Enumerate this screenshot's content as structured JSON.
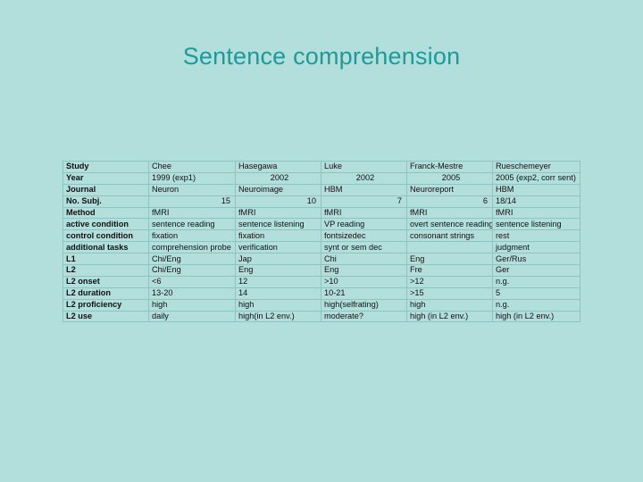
{
  "slide": {
    "title": "Sentence comprehension"
  },
  "table": {
    "rows": [
      {
        "label": "Study",
        "cells": [
          "Chee",
          "Hasegawa",
          "Luke",
          "Franck-Mestre",
          "Rueschemeyer"
        ]
      },
      {
        "label": "Year",
        "cells": [
          "1999 (exp1)",
          "2002",
          "2002",
          "2005",
          "2005 (exp2, corr sent)"
        ]
      },
      {
        "label": "Journal",
        "cells": [
          "Neuron",
          "Neuroimage",
          "HBM",
          "Neuroreport",
          "HBM"
        ]
      },
      {
        "label": "No. Subj.",
        "cells": [
          "15",
          "10",
          "7",
          "6",
          "18/14"
        ]
      },
      {
        "label": "Method",
        "cells": [
          "fMRI",
          "fMRI",
          "fMRI",
          "fMRI",
          "fMRI"
        ]
      },
      {
        "label": "active condition",
        "cells": [
          "sentence reading",
          "sentence listening",
          "VP reading",
          "overt sentence reading",
          "sentence listening"
        ]
      },
      {
        "label": "control condition",
        "cells": [
          "fixation",
          "fixation",
          "fontsizedec",
          "consonant strings",
          "rest"
        ]
      },
      {
        "label": "additional tasks",
        "cells": [
          "comprehension probe",
          "verification",
          "synt or sem dec",
          "",
          "judgment"
        ]
      },
      {
        "label": "L1",
        "cells": [
          "Chi/Eng",
          "Jap",
          "Chi",
          "Eng",
          "Ger/Rus"
        ]
      },
      {
        "label": "L2",
        "cells": [
          "Chi/Eng",
          "Eng",
          "Eng",
          "Fre",
          "Ger"
        ]
      },
      {
        "label": "L2 onset",
        "cells": [
          "<6",
          "12",
          ">10",
          ">12",
          "n.g."
        ]
      },
      {
        "label": "L2 duration",
        "cells": [
          "13-20",
          "14",
          "10-21",
          ">15",
          "5"
        ]
      },
      {
        "label": "L2 proficiency",
        "cells": [
          "high",
          "high",
          "high(selfrating)",
          "high",
          "n.g."
        ]
      },
      {
        "label": "L2 use",
        "cells": [
          "daily",
          "high(in L2 env.)",
          "moderate?",
          "high (in L2 env.)",
          "high (in L2 env.)"
        ]
      }
    ]
  }
}
